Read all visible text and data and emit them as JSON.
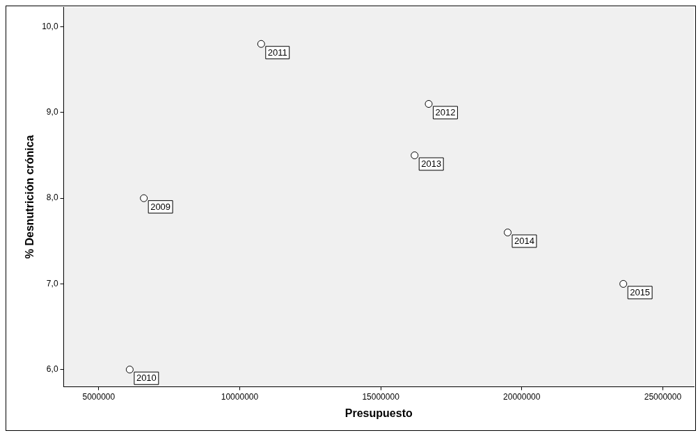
{
  "chart_data": {
    "type": "scatter",
    "xlabel": "Presupuesto",
    "ylabel": "% Desnutrición crónica",
    "x": [
      6600000,
      6100000,
      10760000,
      16700000,
      16200000,
      19500000,
      23600000
    ],
    "values": [
      8.0,
      6.0,
      9.8,
      9.1,
      8.5,
      7.6,
      7.0
    ],
    "color": "#000000",
    "marker": "circle",
    "grid": false,
    "legend": false,
    "xlim": [
      3760000,
      26100000
    ],
    "xticks": [
      5000000,
      10000000,
      15000000,
      20000000,
      25000000
    ],
    "ylim": [
      5.8,
      10.23
    ],
    "yticks": [
      {
        "value": 6,
        "label": "6,0"
      },
      {
        "value": 7,
        "label": "7,0"
      },
      {
        "value": 8,
        "label": "8,0"
      },
      {
        "value": 9,
        "label": "9,0"
      },
      {
        "value": 10,
        "label": "10,0"
      }
    ],
    "annotations": [
      {
        "text": "2009",
        "x": 6600000,
        "y": 8.0
      },
      {
        "text": "2010",
        "x": 6100000,
        "y": 6.0
      },
      {
        "text": "2011",
        "x": 10760000,
        "y": 9.8
      },
      {
        "text": "2012",
        "x": 16700000,
        "y": 9.1
      },
      {
        "text": "2013",
        "x": 16200000,
        "y": 8.5
      },
      {
        "text": "2014",
        "x": 19500000,
        "y": 7.6
      },
      {
        "text": "2015",
        "x": 23600000,
        "y": 7.0
      }
    ]
  }
}
